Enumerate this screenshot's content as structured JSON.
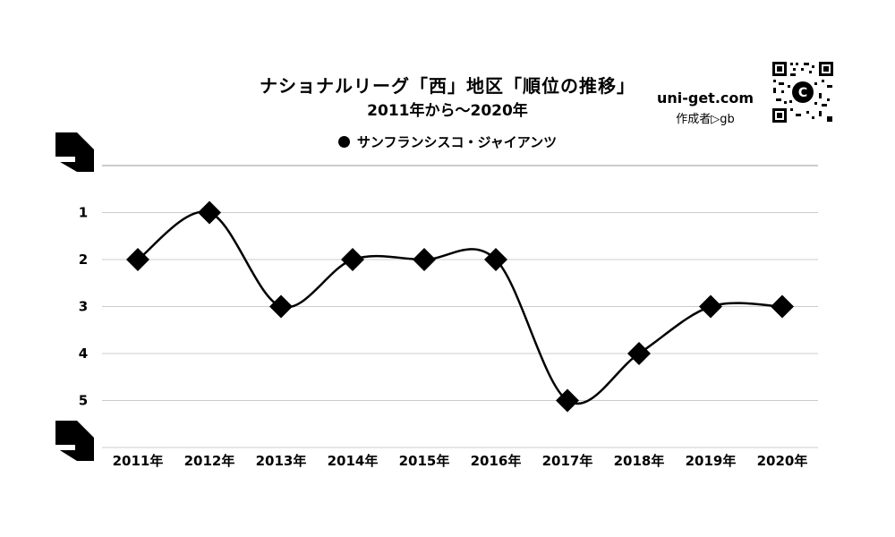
{
  "title": "ナショナルリーグ「西」地区「順位の推移」",
  "subtitle": "2011年から～2020年",
  "site": "uni-get.com",
  "author": "作成者▷gb",
  "legend_label": "サンフランシスコ・ジャイアンツ",
  "colors": {
    "line": "#000000",
    "grid": "#cccccc",
    "marker": "#000000"
  },
  "chart_data": {
    "type": "line",
    "title": "ナショナルリーグ「西」地区「順位の推移」",
    "subtitle": "2011年から～2020年",
    "categories": [
      "2011年",
      "2012年",
      "2013年",
      "2014年",
      "2015年",
      "2016年",
      "2017年",
      "2018年",
      "2019年",
      "2020年"
    ],
    "series": [
      {
        "name": "サンフランシスコ・ジャイアンツ",
        "values": [
          2,
          1,
          3,
          2,
          2,
          2,
          5,
          4,
          3,
          3
        ]
      }
    ],
    "y_ticks": [
      1,
      2,
      3,
      4,
      5
    ],
    "ylim": [
      0,
      6
    ],
    "y_inverted": true,
    "marker": "diamond",
    "smooth": true,
    "grid": true,
    "legend_position": "top"
  }
}
